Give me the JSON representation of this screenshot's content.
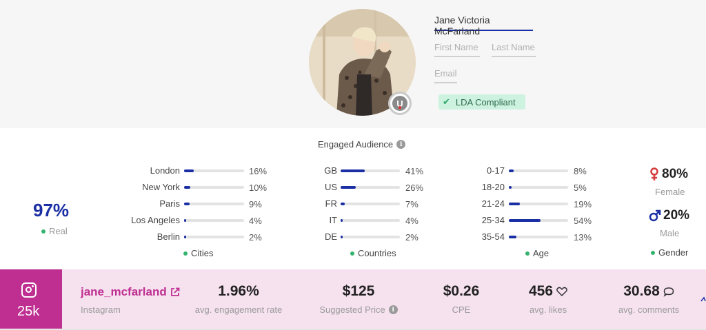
{
  "profile": {
    "full_name": "Jane Victoria McFarland",
    "first_name_placeholder": "First Name",
    "last_name_placeholder": "Last Name",
    "email_placeholder": "Email",
    "compliance_badge": "LDA Compliant",
    "avatar_badge_letter": "U"
  },
  "audience": {
    "title": "Engaged Audience",
    "real": {
      "value": "97%",
      "label": "Real"
    },
    "cities": {
      "caption": "Cities",
      "items": [
        {
          "label": "London",
          "pct": "16%",
          "value": 16
        },
        {
          "label": "New York",
          "pct": "10%",
          "value": 10
        },
        {
          "label": "Paris",
          "pct": "9%",
          "value": 9
        },
        {
          "label": "Los Angeles",
          "pct": "4%",
          "value": 4
        },
        {
          "label": "Berlin",
          "pct": "2%",
          "value": 2
        }
      ]
    },
    "countries": {
      "caption": "Countries",
      "items": [
        {
          "label": "GB",
          "pct": "41%",
          "value": 41
        },
        {
          "label": "US",
          "pct": "26%",
          "value": 26
        },
        {
          "label": "FR",
          "pct": "7%",
          "value": 7
        },
        {
          "label": "IT",
          "pct": "4%",
          "value": 4
        },
        {
          "label": "DE",
          "pct": "2%",
          "value": 2
        }
      ]
    },
    "age": {
      "caption": "Age",
      "items": [
        {
          "label": "0-17",
          "pct": "8%",
          "value": 8
        },
        {
          "label": "18-20",
          "pct": "5%",
          "value": 5
        },
        {
          "label": "21-24",
          "pct": "19%",
          "value": 19
        },
        {
          "label": "25-34",
          "pct": "54%",
          "value": 54
        },
        {
          "label": "35-54",
          "pct": "13%",
          "value": 13
        }
      ]
    },
    "gender": {
      "female_value": "80%",
      "female_label": "Female",
      "male_value": "20%",
      "male_label": "Male",
      "caption": "Gender"
    }
  },
  "stats": {
    "followers": "25k",
    "handle": "jane_mcfarland",
    "platform": "Instagram",
    "engagement_rate": {
      "value": "1.96%",
      "label": "avg. engagement rate"
    },
    "suggested_price": {
      "value": "$125",
      "label": "Suggested Price"
    },
    "cpe": {
      "value": "$0.26",
      "label": "CPE"
    },
    "likes": {
      "value": "456",
      "label": "avg. likes"
    },
    "comments": {
      "value": "30.68",
      "label": "avg. comments"
    }
  },
  "colors": {
    "accent_blue": "#1b2fa4",
    "instagram_magenta": "#bf2f91",
    "status_green": "#34b36f",
    "female_red": "#d63a3a"
  }
}
